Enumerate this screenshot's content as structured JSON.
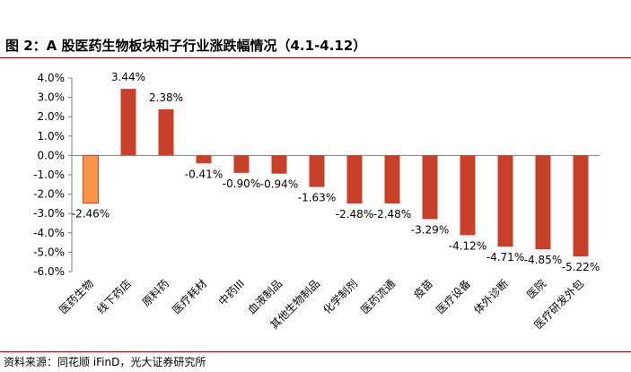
{
  "figure_title": "图 2：A 股医药生物板块和子行业涨跌幅情况（4.1-4.12）",
  "source": "资料来源：同花顺 iFinD，光大证券研究所",
  "colors": {
    "highlight": "#F79646",
    "bar": "#C9402A",
    "highlight_border": "#C0504D",
    "axis": "#808080"
  },
  "chart_data": {
    "type": "bar",
    "title": "",
    "xlabel": "",
    "ylabel": "",
    "ylim": [
      -6.0,
      4.0
    ],
    "yticks": [
      "4.0%",
      "3.0%",
      "2.0%",
      "1.0%",
      "0.0%",
      "-1.0%",
      "-2.0%",
      "-3.0%",
      "-4.0%",
      "-5.0%",
      "-6.0%"
    ],
    "categories": [
      "医药生物",
      "线下药店",
      "原料药",
      "医疗耗材",
      "中药III",
      "血液制品",
      "其他生物制品",
      "化学制剂",
      "医药流通",
      "疫苗",
      "医疗设备",
      "体外诊断",
      "医院",
      "医疗研发外包"
    ],
    "values": [
      -2.46,
      3.44,
      2.38,
      -0.41,
      -0.9,
      -0.94,
      -1.63,
      -2.48,
      -2.48,
      -3.29,
      -4.12,
      -4.71,
      -4.85,
      -5.22
    ],
    "data_labels": [
      "-2.46%",
      "3.44%",
      "2.38%",
      "-0.41%",
      "-0.90%",
      "-0.94%",
      "-1.63%",
      "-2.48%",
      "-2.48%",
      "-3.29%",
      "-4.12%",
      "-4.71%",
      "-4.85%",
      "-5.22%"
    ],
    "highlight_index": 0,
    "legend": "none",
    "grid": false
  }
}
